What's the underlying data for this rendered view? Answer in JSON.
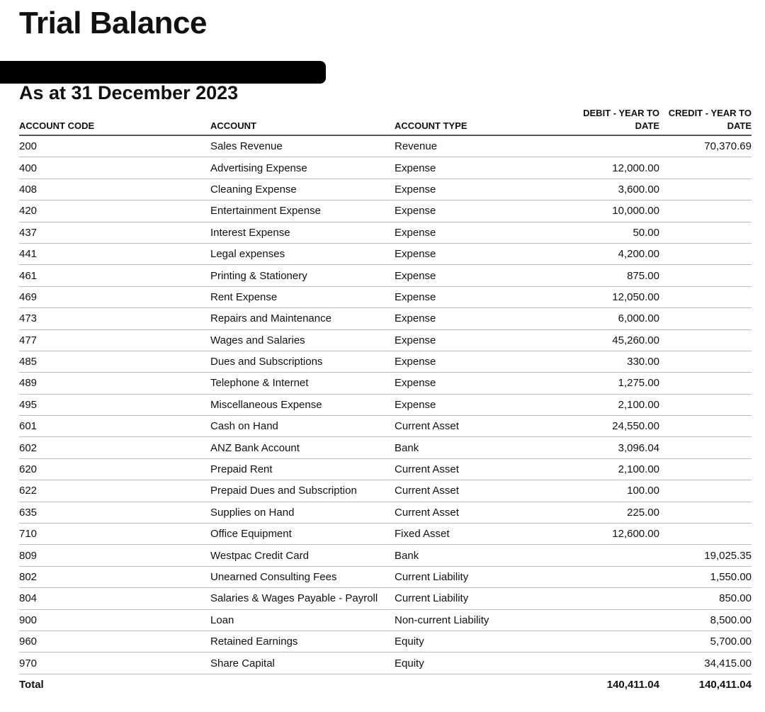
{
  "title": "Trial Balance",
  "subtitle": "As at 31 December 2023",
  "columns": {
    "code": "ACCOUNT CODE",
    "account": "ACCOUNT",
    "type": "ACCOUNT TYPE",
    "debit": "DEBIT - YEAR TO DATE",
    "credit": "CREDIT - YEAR TO DATE"
  },
  "rows": [
    {
      "code": "200",
      "account": "Sales Revenue",
      "type": "Revenue",
      "debit": "",
      "credit": "70,370.69"
    },
    {
      "code": "400",
      "account": "Advertising Expense",
      "type": "Expense",
      "debit": "12,000.00",
      "credit": ""
    },
    {
      "code": "408",
      "account": "Cleaning Expense",
      "type": "Expense",
      "debit": "3,600.00",
      "credit": ""
    },
    {
      "code": "420",
      "account": "Entertainment Expense",
      "type": "Expense",
      "debit": "10,000.00",
      "credit": ""
    },
    {
      "code": "437",
      "account": "Interest Expense",
      "type": "Expense",
      "debit": "50.00",
      "credit": ""
    },
    {
      "code": "441",
      "account": "Legal expenses",
      "type": "Expense",
      "debit": "4,200.00",
      "credit": ""
    },
    {
      "code": "461",
      "account": "Printing & Stationery",
      "type": "Expense",
      "debit": "875.00",
      "credit": ""
    },
    {
      "code": "469",
      "account": "Rent Expense",
      "type": "Expense",
      "debit": "12,050.00",
      "credit": ""
    },
    {
      "code": "473",
      "account": "Repairs and Maintenance",
      "type": "Expense",
      "debit": "6,000.00",
      "credit": ""
    },
    {
      "code": "477",
      "account": "Wages and Salaries",
      "type": "Expense",
      "debit": "45,260.00",
      "credit": ""
    },
    {
      "code": "485",
      "account": "Dues and Subscriptions",
      "type": "Expense",
      "debit": "330.00",
      "credit": ""
    },
    {
      "code": "489",
      "account": "Telephone & Internet",
      "type": "Expense",
      "debit": "1,275.00",
      "credit": ""
    },
    {
      "code": "495",
      "account": "Miscellaneous Expense",
      "type": "Expense",
      "debit": "2,100.00",
      "credit": ""
    },
    {
      "code": "601",
      "account": "Cash on Hand",
      "type": "Current Asset",
      "debit": "24,550.00",
      "credit": ""
    },
    {
      "code": "602",
      "account": "ANZ Bank Account",
      "type": "Bank",
      "debit": "3,096.04",
      "credit": ""
    },
    {
      "code": "620",
      "account": "Prepaid Rent",
      "type": "Current Asset",
      "debit": "2,100.00",
      "credit": ""
    },
    {
      "code": "622",
      "account": "Prepaid Dues and Subscription",
      "type": "Current Asset",
      "debit": "100.00",
      "credit": ""
    },
    {
      "code": "635",
      "account": "Supplies on Hand",
      "type": "Current Asset",
      "debit": "225.00",
      "credit": ""
    },
    {
      "code": "710",
      "account": "Office Equipment",
      "type": "Fixed Asset",
      "debit": "12,600.00",
      "credit": ""
    },
    {
      "code": "809",
      "account": "Westpac Credit Card",
      "type": "Bank",
      "debit": "",
      "credit": "19,025.35"
    },
    {
      "code": "802",
      "account": "Unearned Consulting Fees",
      "type": "Current Liability",
      "debit": "",
      "credit": "1,550.00"
    },
    {
      "code": "804",
      "account": "Salaries & Wages Payable - Payroll",
      "type": "Current Liability",
      "debit": "",
      "credit": "850.00"
    },
    {
      "code": "900",
      "account": "Loan",
      "type": "Non-current Liability",
      "debit": "",
      "credit": "8,500.00"
    },
    {
      "code": "960",
      "account": "Retained Earnings",
      "type": "Equity",
      "debit": "",
      "credit": "5,700.00"
    },
    {
      "code": "970",
      "account": "Share Capital",
      "type": "Equity",
      "debit": "",
      "credit": "34,415.00"
    }
  ],
  "total": {
    "label": "Total",
    "debit": "140,411.04",
    "credit": "140,411.04"
  }
}
